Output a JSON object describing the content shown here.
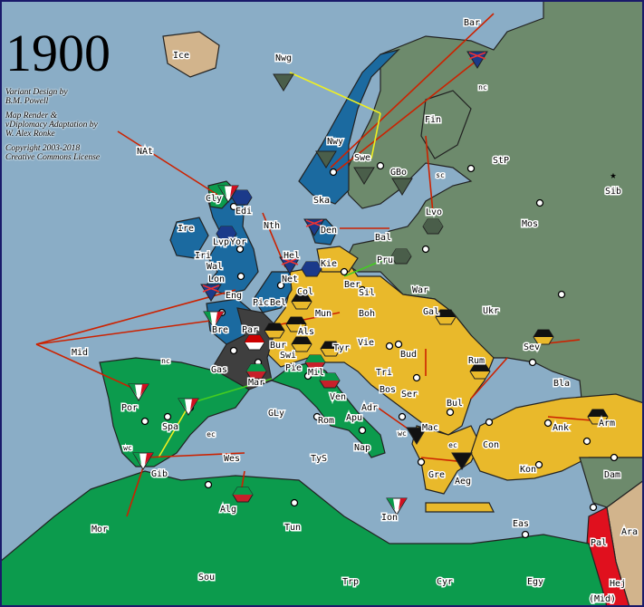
{
  "title": "1900",
  "credits": [
    "Variant Design by",
    "B.M. Powell",
    "Map Render &",
    "vDiplomacy Adaptation by",
    "W. Alex Ronke",
    "Copyright 2003-2018",
    "Creative Commons License"
  ],
  "colors": {
    "sea": "#8aadc6",
    "britain": "#1b6aa0",
    "russia": "#6d8a6c",
    "central": "#e9b92b",
    "italy": "#0c9b4d",
    "france": "#3f3f3f",
    "spainneutral": "#0c9b4d",
    "arabia": "#d2b48c",
    "red": "#e0101e",
    "orders_red": "#cc2200",
    "orders_yellow": "#f0f020",
    "orders_green": "#44cc22"
  },
  "provinces": [
    "Ice",
    "Nwg",
    "Bar",
    "nc",
    "Fin",
    "StP",
    "Sib",
    "Nwy",
    "Swe",
    "GBo",
    "sc",
    "Lvo",
    "Mos",
    "Ska",
    "Den",
    "Bal",
    "NAt",
    "Cly",
    "Edi",
    "Ire",
    "Nth",
    "Lvp",
    "Yor",
    "Iri",
    "Wal",
    "Hel",
    "Kie",
    "Pru",
    "Lon",
    "Net",
    "Ber",
    "Sil",
    "War",
    "Eng",
    "Pic",
    "Bel",
    "Col",
    "Mun",
    "Boh",
    "Gal",
    "Ukr",
    "Bre",
    "Par",
    "Als",
    "Bur",
    "Vie",
    "Mid",
    "Tyr",
    "Bud",
    "Rum",
    "Sev",
    "nc",
    "Gas",
    "Swi",
    "Pie",
    "Mil",
    "Tri",
    "Bla",
    "Bos",
    "Ser",
    "Por",
    "Spa",
    "Mar",
    "Ven",
    "Bul",
    "Ank",
    "Arm",
    "GLy",
    "Rom",
    "Apu",
    "Adr",
    "Mac",
    "wc",
    "Nap",
    "Con",
    "ec",
    "ec",
    "Kon",
    "TyS",
    "Gre",
    "Aeg",
    "wc",
    "Gib",
    "Wes",
    "Alg",
    "Tun",
    "Dam",
    "Ion",
    "Eas",
    "Ara",
    "Pal",
    "Mor",
    "Sou",
    "Trp",
    "Cyr",
    "Egy",
    "Hej",
    "(Mid)"
  ],
  "units": [
    {
      "power": "russia",
      "type": "fleet",
      "at": "Nwg"
    },
    {
      "power": "britain",
      "type": "fleet",
      "at": "Bar"
    },
    {
      "power": "russia",
      "type": "fleet",
      "at": "Nwy"
    },
    {
      "power": "russia",
      "type": "fleet",
      "at": "Swe"
    },
    {
      "power": "russia",
      "type": "fleet",
      "at": "GBo"
    },
    {
      "power": "russia",
      "type": "army",
      "at": "Lvo"
    },
    {
      "power": "russia",
      "type": "army",
      "at": "Pru"
    },
    {
      "power": "italy",
      "type": "fleet",
      "at": "Cly"
    },
    {
      "power": "britain",
      "type": "army",
      "at": "Edi"
    },
    {
      "power": "britain",
      "type": "army",
      "at": "Lvp"
    },
    {
      "power": "britain",
      "type": "fleet",
      "at": "Den"
    },
    {
      "power": "britain",
      "type": "fleet",
      "at": "Hel"
    },
    {
      "power": "britain",
      "type": "army",
      "at": "Kie"
    },
    {
      "power": "britain",
      "type": "fleet",
      "at": "Eng"
    },
    {
      "power": "italy",
      "type": "fleet",
      "at": "Bre"
    },
    {
      "power": "france",
      "type": "army",
      "at": "Par"
    },
    {
      "power": "central",
      "type": "army",
      "at": "Col"
    },
    {
      "power": "central",
      "type": "army",
      "at": "Als"
    },
    {
      "power": "central",
      "type": "army",
      "at": "Bur"
    },
    {
      "power": "central",
      "type": "army",
      "at": "Swi"
    },
    {
      "power": "central",
      "type": "army",
      "at": "Tyr"
    },
    {
      "power": "italy",
      "type": "army",
      "at": "Mil"
    },
    {
      "power": "italy",
      "type": "army",
      "at": "Ven"
    },
    {
      "power": "italy",
      "type": "army",
      "at": "Mar"
    },
    {
      "power": "italy",
      "type": "fleet",
      "at": "Por"
    },
    {
      "power": "italy",
      "type": "fleet",
      "at": "Spa"
    },
    {
      "power": "italy",
      "type": "fleet",
      "at": "Gib"
    },
    {
      "power": "italy",
      "type": "army",
      "at": "Alg"
    },
    {
      "power": "italy",
      "type": "fleet",
      "at": "Ion"
    },
    {
      "power": "central",
      "type": "army",
      "at": "Gal"
    },
    {
      "power": "central",
      "type": "army",
      "at": "Rum"
    },
    {
      "power": "central",
      "type": "army",
      "at": "Sev"
    },
    {
      "power": "central",
      "type": "fleet",
      "at": "Mac"
    },
    {
      "power": "central",
      "type": "fleet",
      "at": "Aeg"
    },
    {
      "power": "central",
      "type": "army",
      "at": "Arm"
    }
  ]
}
